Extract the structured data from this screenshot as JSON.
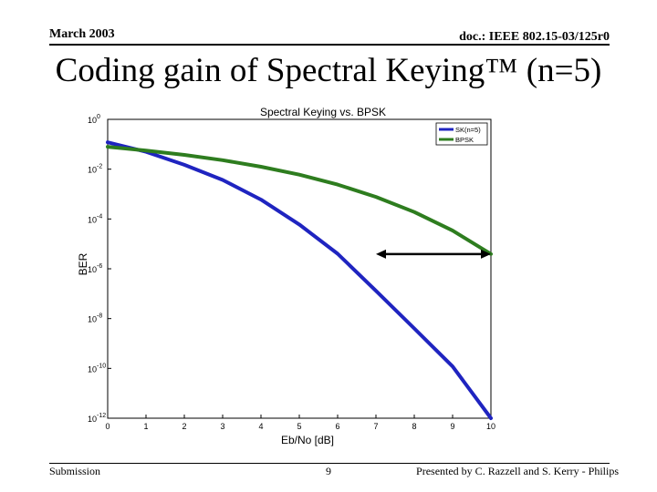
{
  "slide": {
    "date": "March 2003",
    "doc_id": "doc.: IEEE 802.15-03/125r0",
    "title": "Coding gain of Spectral Keying™ (n=5)",
    "footer_left": "Submission",
    "page_number": "9",
    "footer_right": "Presented by C. Razzell and S. Kerry - Philips"
  },
  "chart_data": {
    "type": "line",
    "title": "Spectral Keying vs. BPSK",
    "xlabel": "Eb/No [dB]",
    "ylabel": "BER",
    "xlim": [
      0,
      10
    ],
    "ylim": [
      1e-12,
      1
    ],
    "yscale": "log",
    "x_ticks": [
      "0",
      "1",
      "2",
      "3",
      "4",
      "5",
      "6",
      "7",
      "8",
      "9",
      "10"
    ],
    "y_ticks": [
      {
        "base": "10",
        "exp": "0",
        "value": 1
      },
      {
        "base": "10",
        "exp": "-2",
        "value": 0.01
      },
      {
        "base": "10",
        "exp": "-4",
        "value": 0.0001
      },
      {
        "base": "10",
        "exp": "-6",
        "value": 1e-06
      },
      {
        "base": "10",
        "exp": "-8",
        "value": 1e-08
      },
      {
        "base": "10",
        "exp": "-10",
        "value": 1e-10
      },
      {
        "base": "10",
        "exp": "-12",
        "value": 1e-12
      }
    ],
    "grid": false,
    "legend_position": "top-right",
    "series": [
      {
        "name": "SK(n=5)",
        "color": "#1f24c0",
        "x": [
          0,
          1,
          2,
          3,
          4,
          5,
          6,
          7,
          8,
          9,
          10
        ],
        "y": [
          0.12,
          0.05,
          0.015,
          0.0037,
          0.0006,
          6e-05,
          4e-06,
          1.3e-07,
          4e-09,
          1.2e-10,
          1e-12
        ]
      },
      {
        "name": "BPSK",
        "color": "#2e7d1f",
        "x": [
          0,
          1,
          2,
          3,
          4,
          5,
          6,
          7,
          8,
          9,
          10
        ],
        "y": [
          0.079,
          0.056,
          0.0375,
          0.023,
          0.0125,
          0.006,
          0.0024,
          0.00077,
          0.00019,
          3.4e-05,
          3.9e-06
        ]
      }
    ],
    "annotations": [
      {
        "type": "double-arrow",
        "x_from": 7,
        "x_to": 10,
        "y": 3.9e-06
      }
    ]
  }
}
